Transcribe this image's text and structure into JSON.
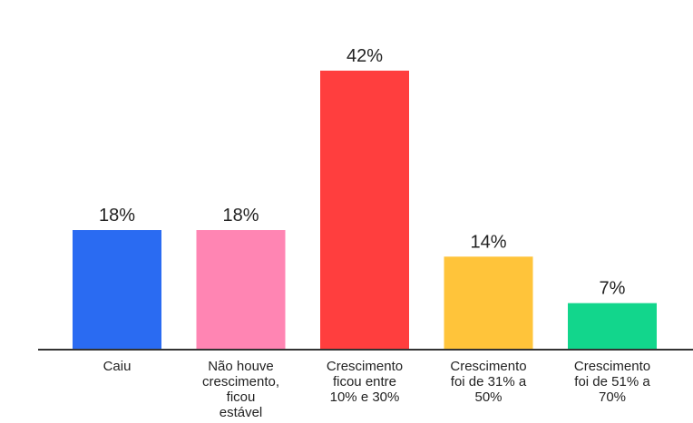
{
  "chart_data": {
    "type": "bar",
    "categories": [
      [
        "Caiu"
      ],
      [
        "Não houve",
        "crescimento,",
        "ficou",
        "estável"
      ],
      [
        "Crescimento",
        "ficou entre",
        "10% e 30%"
      ],
      [
        "Crescimento",
        "foi de 31% a",
        "50%"
      ],
      [
        "Crescimento",
        "foi de 51% a",
        "70%"
      ]
    ],
    "values": [
      18,
      18,
      42,
      14,
      7
    ],
    "value_labels": [
      "18%",
      "18%",
      "42%",
      "14%",
      "7%"
    ],
    "colors": [
      "#2A6BF2",
      "#FF85B3",
      "#FF3E3E",
      "#FFC43A",
      "#12D68C"
    ],
    "axis_color": "#333333",
    "grid": false,
    "legend": "none",
    "title": "",
    "xlabel": "",
    "ylabel": "",
    "ylim": [
      0,
      42
    ]
  }
}
